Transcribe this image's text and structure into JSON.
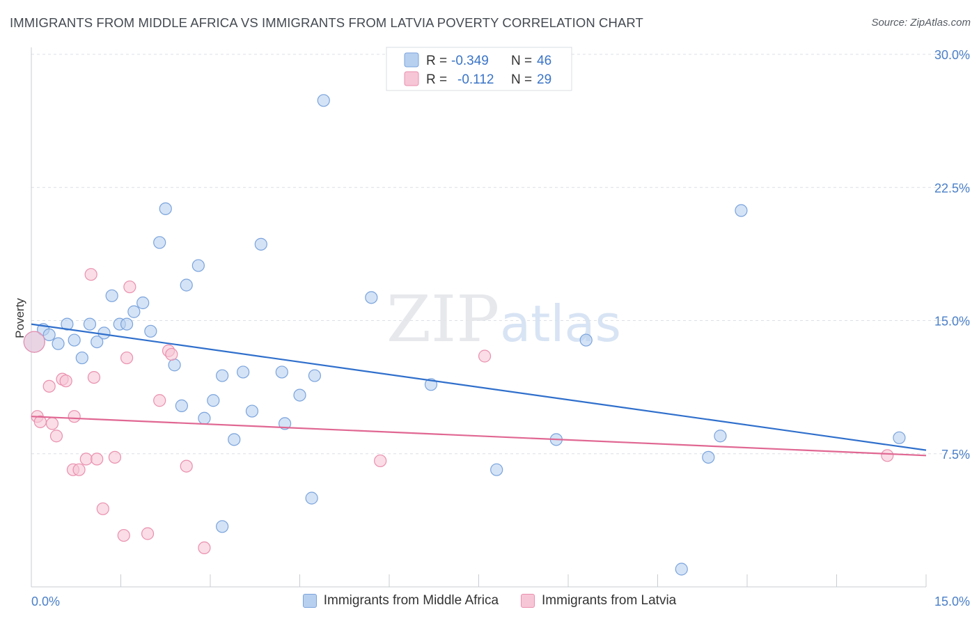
{
  "title": "IMMIGRANTS FROM MIDDLE AFRICA VS IMMIGRANTS FROM LATVIA POVERTY CORRELATION CHART",
  "source": "Source: ZipAtlas.com",
  "watermark": {
    "zip": "ZIP",
    "atlas": "atlas"
  },
  "legend_top": {
    "r_label": "R =",
    "n_label": "N =",
    "series": [
      {
        "r": "-0.349",
        "n": "46"
      },
      {
        "r": "-0.112",
        "n": "29"
      }
    ]
  },
  "colors": {
    "blue_fill": "#b8d0f0",
    "blue_stroke": "#7aa3dc",
    "blue_line": "#2f6fcc",
    "pink_fill": "#f7c6d6",
    "pink_stroke": "#ea8fae",
    "pink_line": "#e06792"
  },
  "chart_data": {
    "type": "scatter",
    "title": "IMMIGRANTS FROM MIDDLE AFRICA VS IMMIGRANTS FROM LATVIA POVERTY CORRELATION CHART",
    "ylabel": "Poverty",
    "xlim": [
      0,
      15
    ],
    "ylim": [
      0,
      30
    ],
    "x_tick_labels": [
      "0.0%",
      "15.0%"
    ],
    "y_ticks": [
      7.5,
      15.0,
      22.5,
      30.0
    ],
    "y_tick_labels": [
      "7.5%",
      "15.0%",
      "22.5%",
      "30.0%"
    ],
    "grid": true,
    "legend_position": "top-center",
    "series": [
      {
        "name": "Immigrants from Middle Africa",
        "color": "#b8d0f0",
        "trend": {
          "x": [
            0,
            15
          ],
          "y": [
            14.8,
            7.7
          ]
        },
        "points": [
          {
            "x": 0.05,
            "y": 13.8,
            "big": true
          },
          {
            "x": 0.2,
            "y": 14.5
          },
          {
            "x": 0.3,
            "y": 14.2
          },
          {
            "x": 0.45,
            "y": 13.7
          },
          {
            "x": 0.6,
            "y": 14.8
          },
          {
            "x": 0.72,
            "y": 13.9
          },
          {
            "x": 0.85,
            "y": 12.9
          },
          {
            "x": 0.98,
            "y": 14.8
          },
          {
            "x": 1.1,
            "y": 13.8
          },
          {
            "x": 1.22,
            "y": 14.3
          },
          {
            "x": 1.35,
            "y": 16.4
          },
          {
            "x": 1.48,
            "y": 14.8
          },
          {
            "x": 1.6,
            "y": 14.8
          },
          {
            "x": 1.72,
            "y": 15.5
          },
          {
            "x": 1.87,
            "y": 16.0
          },
          {
            "x": 2.0,
            "y": 14.4
          },
          {
            "x": 2.15,
            "y": 19.4
          },
          {
            "x": 2.25,
            "y": 21.3
          },
          {
            "x": 2.4,
            "y": 12.5
          },
          {
            "x": 2.52,
            "y": 10.2
          },
          {
            "x": 2.6,
            "y": 17.0
          },
          {
            "x": 2.8,
            "y": 18.1
          },
          {
            "x": 2.9,
            "y": 9.5
          },
          {
            "x": 3.05,
            "y": 10.5
          },
          {
            "x": 3.2,
            "y": 11.9
          },
          {
            "x": 3.2,
            "y": 3.4
          },
          {
            "x": 3.4,
            "y": 8.3
          },
          {
            "x": 3.55,
            "y": 12.1
          },
          {
            "x": 3.7,
            "y": 9.9
          },
          {
            "x": 3.85,
            "y": 19.3
          },
          {
            "x": 4.2,
            "y": 12.1
          },
          {
            "x": 4.25,
            "y": 9.2
          },
          {
            "x": 4.5,
            "y": 10.8
          },
          {
            "x": 4.7,
            "y": 5.0
          },
          {
            "x": 4.75,
            "y": 11.9
          },
          {
            "x": 4.9,
            "y": 27.4
          },
          {
            "x": 5.7,
            "y": 16.3
          },
          {
            "x": 6.7,
            "y": 11.4
          },
          {
            "x": 7.8,
            "y": 6.6
          },
          {
            "x": 8.8,
            "y": 8.3
          },
          {
            "x": 9.3,
            "y": 13.9
          },
          {
            "x": 10.9,
            "y": 1.0
          },
          {
            "x": 11.35,
            "y": 7.3
          },
          {
            "x": 11.55,
            "y": 8.5
          },
          {
            "x": 11.9,
            "y": 21.2
          },
          {
            "x": 14.55,
            "y": 8.4
          }
        ]
      },
      {
        "name": "Immigrants from Latvia",
        "color": "#f7c6d6",
        "trend": {
          "x": [
            0,
            15
          ],
          "y": [
            9.6,
            7.4
          ]
        },
        "points": [
          {
            "x": 0.05,
            "y": 13.8,
            "big": true
          },
          {
            "x": 0.1,
            "y": 9.6
          },
          {
            "x": 0.15,
            "y": 9.3
          },
          {
            "x": 0.3,
            "y": 11.3
          },
          {
            "x": 0.35,
            "y": 9.2
          },
          {
            "x": 0.42,
            "y": 8.5
          },
          {
            "x": 0.52,
            "y": 11.7
          },
          {
            "x": 0.58,
            "y": 11.6
          },
          {
            "x": 0.7,
            "y": 6.6
          },
          {
            "x": 0.72,
            "y": 9.6
          },
          {
            "x": 0.8,
            "y": 6.6
          },
          {
            "x": 0.92,
            "y": 7.2
          },
          {
            "x": 1.0,
            "y": 17.6
          },
          {
            "x": 1.05,
            "y": 11.8
          },
          {
            "x": 1.1,
            "y": 7.2
          },
          {
            "x": 1.2,
            "y": 4.4
          },
          {
            "x": 1.4,
            "y": 7.3
          },
          {
            "x": 1.55,
            "y": 2.9
          },
          {
            "x": 1.6,
            "y": 12.9
          },
          {
            "x": 1.65,
            "y": 16.9
          },
          {
            "x": 1.95,
            "y": 3.0
          },
          {
            "x": 2.15,
            "y": 10.5
          },
          {
            "x": 2.3,
            "y": 13.3
          },
          {
            "x": 2.35,
            "y": 13.1
          },
          {
            "x": 2.6,
            "y": 6.8
          },
          {
            "x": 2.9,
            "y": 2.2
          },
          {
            "x": 5.85,
            "y": 7.1
          },
          {
            "x": 7.6,
            "y": 13.0
          },
          {
            "x": 14.35,
            "y": 7.4
          }
        ]
      }
    ]
  }
}
